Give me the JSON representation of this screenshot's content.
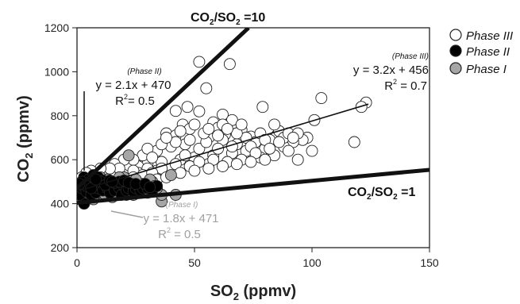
{
  "chart_data": {
    "type": "scatter",
    "title": "",
    "xlabel": "SO",
    "xlabel_sub": "2",
    "xlabel_unit": " (ppmv)",
    "ylabel": "CO",
    "ylabel_sub": "2",
    "ylabel_unit": " (ppmv)",
    "xlim": [
      0,
      150
    ],
    "ylim": [
      200,
      1200
    ],
    "x_ticks": [
      "0",
      "50",
      "100",
      "150"
    ],
    "y_ticks": [
      "200",
      "400",
      "600",
      "800",
      "1000",
      "1200"
    ],
    "legend": {
      "position": "top-right",
      "entries": [
        {
          "label": "Phase III",
          "fill": "#ffffff"
        },
        {
          "label": "Phase II",
          "fill": "#000000"
        },
        {
          "label": "Phase I",
          "fill": "#a6a6a6"
        }
      ]
    },
    "reference_lines": [
      {
        "label_main": "CO",
        "label_sub1": "2",
        "label_mid": "/SO",
        "label_sub2": "2",
        "label_end": " =10",
        "slope": 10,
        "intercept": 470,
        "x_range": [
          0,
          73
        ]
      },
      {
        "label_main": "CO",
        "label_sub1": "2",
        "label_mid": "/SO",
        "label_sub2": "2",
        "label_end": " =1",
        "slope": 1,
        "intercept": 404,
        "x_range": [
          0,
          150
        ]
      }
    ],
    "fits": [
      {
        "phase": "(Phase III)",
        "equation": "y = 3.2x + 456",
        "r2_prefix": "R",
        "r2_sup": "2",
        "r2_value": " = 0.7",
        "slope": 3.2,
        "intercept": 456,
        "x_range": [
          0,
          124
        ],
        "color": "#111111"
      },
      {
        "phase": "(Phase II)",
        "equation": "y = 2.1x + 470",
        "r2_prefix": "R",
        "r2_sup": "2",
        "r2_value": "= 0.5",
        "color": "#111111"
      },
      {
        "phase": "(Phase I)",
        "equation": "y = 1.8x + 471",
        "r2_prefix": "R",
        "r2_sup": "2",
        "r2_value": " = 0.5",
        "color": "#a0a0a0"
      }
    ],
    "series": [
      {
        "name": "Phase III",
        "fill": "#ffffff",
        "points": [
          [
            52,
            1045
          ],
          [
            65,
            1035
          ],
          [
            55,
            925
          ],
          [
            104,
            880
          ],
          [
            123,
            860
          ],
          [
            121,
            840
          ],
          [
            79,
            840
          ],
          [
            118,
            680
          ],
          [
            47,
            840
          ],
          [
            42,
            822
          ],
          [
            52,
            820
          ],
          [
            62,
            805
          ],
          [
            66,
            780
          ],
          [
            58,
            770
          ],
          [
            45,
            760
          ],
          [
            48,
            740
          ],
          [
            60,
            745
          ],
          [
            70,
            735
          ],
          [
            38,
            720
          ],
          [
            42,
            710
          ],
          [
            56,
            700
          ],
          [
            63,
            715
          ],
          [
            74,
            705
          ],
          [
            85,
            710
          ],
          [
            98,
            700
          ],
          [
            96,
            690
          ],
          [
            101,
            780
          ],
          [
            92,
            680
          ],
          [
            88,
            660
          ],
          [
            80,
            650
          ],
          [
            72,
            640
          ],
          [
            66,
            630
          ],
          [
            58,
            620
          ],
          [
            50,
            610
          ],
          [
            44,
            600
          ],
          [
            36,
            590
          ],
          [
            30,
            580
          ],
          [
            26,
            570
          ],
          [
            22,
            560
          ],
          [
            18,
            550
          ],
          [
            14,
            540
          ],
          [
            10,
            530
          ],
          [
            6,
            520
          ],
          [
            3,
            510
          ],
          [
            40,
            660
          ],
          [
            46,
            670
          ],
          [
            52,
            650
          ],
          [
            34,
            640
          ],
          [
            28,
            620
          ],
          [
            24,
            600
          ],
          [
            30,
            650
          ],
          [
            20,
            600
          ],
          [
            16,
            580
          ],
          [
            55,
            680
          ],
          [
            62,
            690
          ],
          [
            68,
            670
          ],
          [
            76,
            680
          ],
          [
            82,
            690
          ],
          [
            90,
            640
          ],
          [
            84,
            620
          ],
          [
            78,
            610
          ],
          [
            70,
            600
          ],
          [
            64,
            590
          ],
          [
            56,
            580
          ],
          [
            48,
            570
          ],
          [
            40,
            560
          ],
          [
            34,
            550
          ],
          [
            26,
            540
          ],
          [
            20,
            530
          ],
          [
            12,
            520
          ],
          [
            8,
            500
          ],
          [
            60,
            650
          ],
          [
            66,
            660
          ],
          [
            72,
            700
          ],
          [
            78,
            720
          ],
          [
            86,
            730
          ],
          [
            94,
            600
          ],
          [
            100,
            640
          ],
          [
            54,
            720
          ],
          [
            48,
            690
          ],
          [
            42,
            680
          ],
          [
            36,
            670
          ],
          [
            32,
            610
          ],
          [
            38,
            700
          ],
          [
            44,
            730
          ],
          [
            50,
            760
          ],
          [
            56,
            740
          ],
          [
            62,
            760
          ],
          [
            68,
            720
          ],
          [
            74,
            660
          ],
          [
            80,
            690
          ],
          [
            88,
            700
          ],
          [
            58,
            600
          ],
          [
            52,
            590
          ],
          [
            46,
            620
          ],
          [
            42,
            580
          ],
          [
            36,
            560
          ],
          [
            30,
            560
          ],
          [
            24,
            550
          ],
          [
            18,
            560
          ],
          [
            14,
            560
          ],
          [
            10,
            560
          ],
          [
            6,
            550
          ],
          [
            4,
            540
          ],
          [
            2,
            520
          ],
          [
            1,
            480
          ],
          [
            3,
            470
          ],
          [
            5,
            460
          ],
          [
            8,
            470
          ],
          [
            12,
            480
          ],
          [
            16,
            500
          ],
          [
            20,
            510
          ],
          [
            24,
            520
          ],
          [
            28,
            530
          ],
          [
            32,
            540
          ],
          [
            60,
            710
          ],
          [
            64,
            740
          ],
          [
            70,
            760
          ],
          [
            84,
            760
          ],
          [
            90,
            720
          ],
          [
            94,
            720
          ],
          [
            76,
            630
          ],
          [
            82,
            650
          ],
          [
            86,
            680
          ],
          [
            92,
            700
          ],
          [
            34,
            510
          ],
          [
            38,
            520
          ],
          [
            44,
            540
          ],
          [
            50,
            550
          ],
          [
            56,
            560
          ],
          [
            62,
            570
          ],
          [
            68,
            580
          ],
          [
            74,
            590
          ],
          [
            80,
            600
          ],
          [
            2,
            420
          ],
          [
            4,
            430
          ],
          [
            6,
            440
          ],
          [
            1,
            450
          ],
          [
            9,
            450
          ],
          [
            7,
            480
          ],
          [
            11,
            500
          ],
          [
            15,
            470
          ],
          [
            19,
            480
          ],
          [
            23,
            490
          ]
        ]
      },
      {
        "name": "Phase I",
        "fill": "#a6a6a6",
        "points": [
          [
            22,
            620
          ],
          [
            36,
            410
          ],
          [
            28,
            490
          ],
          [
            32,
            500
          ],
          [
            36,
            440
          ],
          [
            20,
            520
          ],
          [
            26,
            460
          ],
          [
            14,
            500
          ],
          [
            12,
            470
          ],
          [
            16,
            480
          ],
          [
            8,
            490
          ],
          [
            6,
            510
          ],
          [
            10,
            520
          ],
          [
            4,
            470
          ],
          [
            2,
            460
          ],
          [
            18,
            460
          ],
          [
            24,
            440
          ],
          [
            30,
            450
          ],
          [
            34,
            470
          ],
          [
            40,
            530
          ],
          [
            42,
            440
          ],
          [
            18,
            520
          ],
          [
            12,
            440
          ],
          [
            5,
            440
          ],
          [
            3,
            420
          ],
          [
            1,
            430
          ],
          [
            7,
            420
          ],
          [
            15,
            430
          ],
          [
            21,
            440
          ],
          [
            27,
            470
          ],
          [
            31,
            510
          ],
          [
            9,
            460
          ],
          [
            13,
            510
          ],
          [
            17,
            470
          ],
          [
            23,
            480
          ],
          [
            25,
            510
          ],
          [
            29,
            460
          ],
          [
            33,
            480
          ],
          [
            11,
            490
          ],
          [
            19,
            490
          ]
        ]
      },
      {
        "name": "Phase II",
        "fill": "#000000",
        "points": [
          [
            7,
            475
          ],
          [
            3,
            400
          ],
          [
            1,
            440
          ],
          [
            2,
            470
          ],
          [
            4,
            455
          ],
          [
            5,
            495
          ],
          [
            6,
            440
          ],
          [
            8,
            450
          ],
          [
            9,
            470
          ],
          [
            10,
            480
          ],
          [
            11,
            460
          ],
          [
            12,
            500
          ],
          [
            13,
            470
          ],
          [
            14,
            450
          ],
          [
            15,
            480
          ],
          [
            16,
            460
          ],
          [
            17,
            490
          ],
          [
            18,
            470
          ],
          [
            19,
            440
          ],
          [
            20,
            480
          ],
          [
            21,
            460
          ],
          [
            22,
            470
          ],
          [
            23,
            490
          ],
          [
            24,
            455
          ],
          [
            25,
            470
          ],
          [
            26,
            480
          ],
          [
            27,
            460
          ],
          [
            28,
            470
          ],
          [
            30,
            470
          ],
          [
            32,
            460
          ],
          [
            34,
            480
          ],
          [
            3,
            520
          ],
          [
            5,
            510
          ],
          [
            7,
            530
          ],
          [
            9,
            520
          ],
          [
            11,
            505
          ],
          [
            2,
            500
          ],
          [
            4,
            480
          ],
          [
            6,
            470
          ],
          [
            10,
            500
          ],
          [
            12,
            485
          ],
          [
            14,
            505
          ],
          [
            16,
            495
          ],
          [
            18,
            500
          ],
          [
            20,
            505
          ],
          [
            22,
            495
          ],
          [
            1,
            490
          ],
          [
            8,
            510
          ],
          [
            15,
            500
          ],
          [
            25,
            490
          ],
          [
            29,
            490
          ],
          [
            31,
            475
          ]
        ]
      }
    ]
  }
}
